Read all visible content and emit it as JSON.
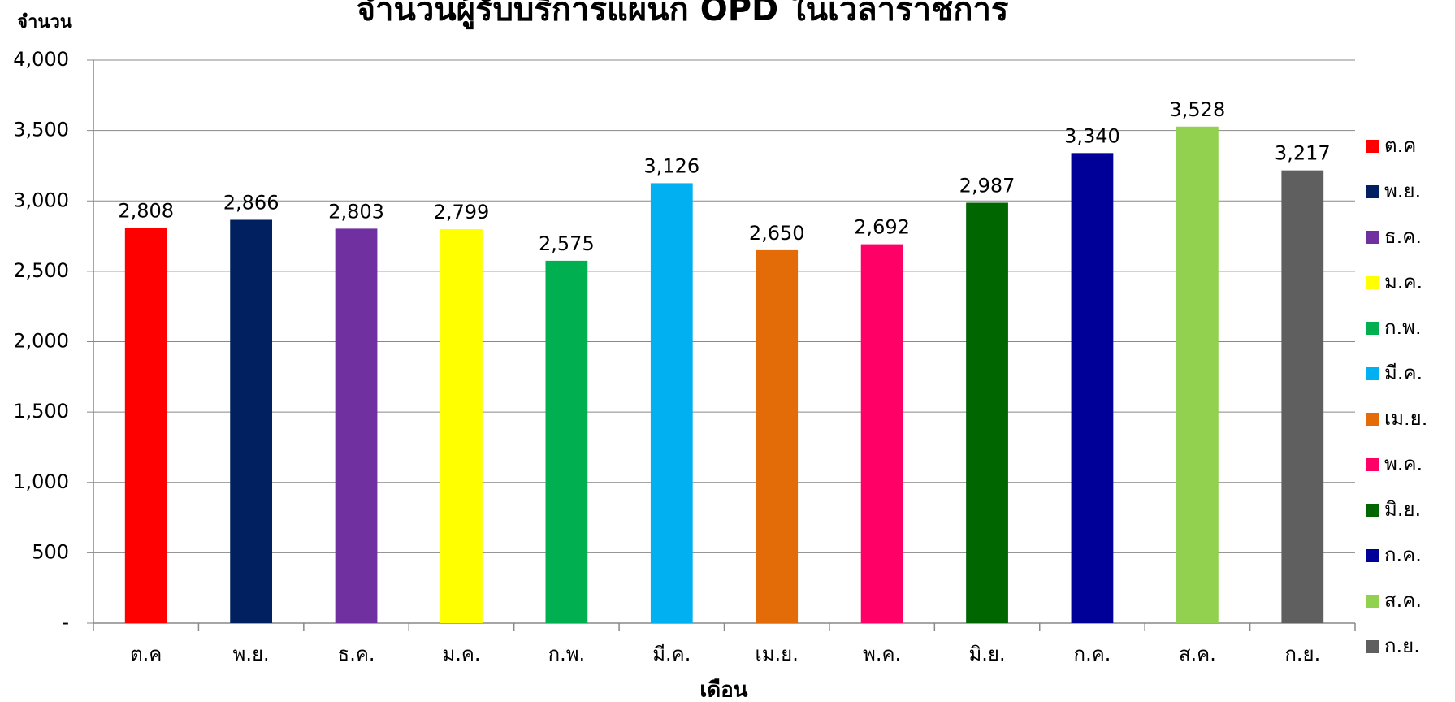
{
  "chart_data": {
    "type": "bar",
    "title": "จำนวนผู้รับบริการแผนก OPD ในเวลาราชการ",
    "y_label": "จำนวน",
    "x_label": "เดือน",
    "categories": [
      "ต.ค",
      "พ.ย.",
      "ธ.ค.",
      "ม.ค.",
      "ก.พ.",
      "มี.ค.",
      "เม.ย.",
      "พ.ค.",
      "มิ.ย.",
      "ก.ค.",
      "ส.ค.",
      "ก.ย."
    ],
    "values": [
      2808,
      2866,
      2803,
      2799,
      2575,
      3126,
      2650,
      2692,
      2987,
      3340,
      3528,
      3217
    ],
    "value_labels": [
      "2,808",
      "2,866",
      "2,803",
      "2,799",
      "2,575",
      "3,126",
      "2,650",
      "2,692",
      "2,987",
      "3,340",
      "3,528",
      "3,217"
    ],
    "colors": [
      "#ff0000",
      "#002060",
      "#7030a0",
      "#ffff00",
      "#00b050",
      "#00b0f0",
      "#e36c09",
      "#ff0066",
      "#006600",
      "#000099",
      "#92d050",
      "#5f5f5f"
    ],
    "ylim": [
      0,
      4000
    ],
    "yticks": [
      {
        "value": 0,
        "label": "-"
      },
      500,
      {
        "value": 1000,
        "label": "1,000"
      },
      {
        "value": 1500,
        "label": "1,500"
      },
      {
        "value": 2000,
        "label": "2,000"
      },
      {
        "value": 2500,
        "label": "2,500"
      },
      {
        "value": 3000,
        "label": "3,000"
      },
      {
        "value": 3500,
        "label": "3,500"
      },
      {
        "value": 4000,
        "label": "4,000"
      }
    ],
    "grid": true,
    "legend": "right"
  }
}
